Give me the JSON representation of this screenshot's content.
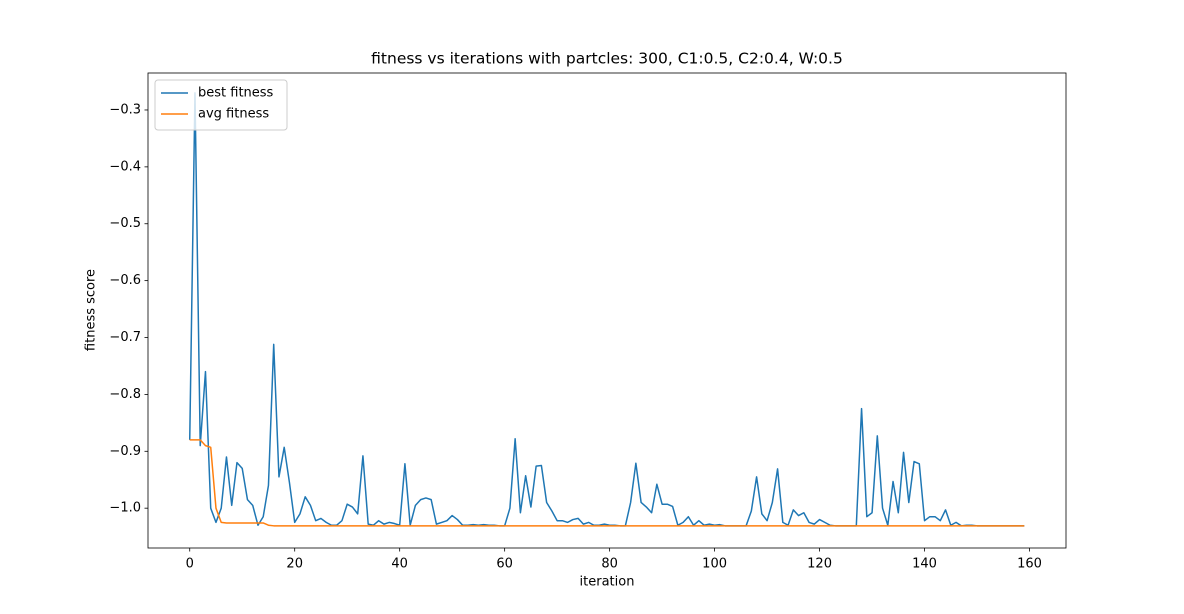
{
  "chart_data": {
    "type": "line",
    "title": "fitness vs iterations with partcles: 300, C1:0.5, C2:0.4, W:0.5",
    "xlabel": "iteration",
    "ylabel": "fitness score",
    "x": [
      0,
      1,
      2,
      3,
      4,
      5,
      6,
      7,
      8,
      9,
      10,
      11,
      12,
      13,
      14,
      15,
      16,
      17,
      18,
      19,
      20,
      21,
      22,
      23,
      24,
      25,
      26,
      27,
      28,
      29,
      30,
      31,
      32,
      33,
      34,
      35,
      36,
      37,
      38,
      39,
      40,
      41,
      42,
      43,
      44,
      45,
      46,
      47,
      48,
      49,
      50,
      51,
      52,
      53,
      54,
      55,
      56,
      57,
      58,
      59,
      60,
      61,
      62,
      63,
      64,
      65,
      66,
      67,
      68,
      69,
      70,
      71,
      72,
      73,
      74,
      75,
      76,
      77,
      78,
      79,
      80,
      81,
      82,
      83,
      84,
      85,
      86,
      87,
      88,
      89,
      90,
      91,
      92,
      93,
      94,
      95,
      96,
      97,
      98,
      99,
      100,
      101,
      102,
      103,
      104,
      105,
      106,
      107,
      108,
      109,
      110,
      111,
      112,
      113,
      114,
      115,
      116,
      117,
      118,
      119,
      120,
      121,
      122,
      123,
      124,
      125,
      126,
      127,
      128,
      129,
      130,
      131,
      132,
      133,
      134,
      135,
      136,
      137,
      138,
      139,
      140,
      141,
      142,
      143,
      144,
      145,
      146,
      147,
      148,
      149,
      150,
      151,
      152,
      153,
      154,
      155,
      156,
      157,
      158,
      159
    ],
    "series": [
      {
        "name": "best fitness",
        "color": "#1f77b4",
        "values": [
          -0.88,
          -0.27,
          -0.89,
          -0.76,
          -1.0,
          -1.025,
          -1.0,
          -0.91,
          -0.995,
          -0.92,
          -0.93,
          -0.985,
          -0.995,
          -1.03,
          -1.015,
          -0.96,
          -0.712,
          -0.945,
          -0.893,
          -0.955,
          -1.025,
          -1.01,
          -0.98,
          -0.995,
          -1.022,
          -1.018,
          -1.025,
          -1.03,
          -1.03,
          -1.022,
          -0.993,
          -0.998,
          -1.01,
          -0.908,
          -1.028,
          -1.03,
          -1.022,
          -1.028,
          -1.025,
          -1.027,
          -1.03,
          -0.922,
          -1.03,
          -0.995,
          -0.985,
          -0.982,
          -0.985,
          -1.028,
          -1.025,
          -1.022,
          -1.013,
          -1.02,
          -1.03,
          -1.03,
          -1.029,
          -1.03,
          -1.029,
          -1.03,
          -1.03,
          -1.031,
          -1.031,
          -1.0,
          -0.878,
          -1.008,
          -0.943,
          -0.998,
          -0.926,
          -0.925,
          -0.99,
          -1.005,
          -1.022,
          -1.022,
          -1.025,
          -1.02,
          -1.018,
          -1.028,
          -1.025,
          -1.03,
          -1.03,
          -1.028,
          -1.03,
          -1.03,
          -1.031,
          -1.031,
          -0.99,
          -0.921,
          -0.99,
          -0.998,
          -1.008,
          -0.958,
          -0.993,
          -0.993,
          -0.997,
          -1.03,
          -1.025,
          -1.015,
          -1.03,
          -1.022,
          -1.03,
          -1.028,
          -1.03,
          -1.029,
          -1.031,
          -1.031,
          -1.031,
          -1.031,
          -1.031,
          -1.005,
          -0.945,
          -1.01,
          -1.022,
          -0.99,
          -0.931,
          -1.025,
          -1.03,
          -1.003,
          -1.013,
          -1.008,
          -1.025,
          -1.028,
          -1.02,
          -1.025,
          -1.03,
          -1.031,
          -1.031,
          -1.031,
          -1.031,
          -1.031,
          -0.825,
          -1.015,
          -1.008,
          -0.873,
          -1.0,
          -1.03,
          -0.953,
          -1.008,
          -0.902,
          -0.99,
          -0.918,
          -0.922,
          -1.022,
          -1.015,
          -1.015,
          -1.022,
          -1.003,
          -1.03,
          -1.025,
          -1.031,
          -1.03,
          -1.03,
          -1.031,
          -1.031,
          -1.031,
          -1.031,
          -1.031,
          -1.031,
          -1.031,
          -1.031,
          -1.031,
          -1.031
        ]
      },
      {
        "name": "avg fitness",
        "color": "#ff7f0e",
        "values": [
          -0.88,
          -0.88,
          -0.88,
          -0.89,
          -0.893,
          -1.0,
          -1.025,
          -1.026,
          -1.026,
          -1.026,
          -1.026,
          -1.026,
          -1.026,
          -1.026,
          -1.026,
          -1.03,
          -1.031,
          -1.031,
          -1.031,
          -1.031,
          -1.031,
          -1.031,
          -1.031,
          -1.031,
          -1.031,
          -1.031,
          -1.031,
          -1.031,
          -1.031,
          -1.031,
          -1.031,
          -1.031,
          -1.031,
          -1.031,
          -1.031,
          -1.031,
          -1.031,
          -1.031,
          -1.031,
          -1.031,
          -1.031,
          -1.031,
          -1.031,
          -1.031,
          -1.031,
          -1.031,
          -1.031,
          -1.031,
          -1.031,
          -1.031,
          -1.031,
          -1.031,
          -1.031,
          -1.031,
          -1.031,
          -1.031,
          -1.031,
          -1.031,
          -1.031,
          -1.031,
          -1.031,
          -1.031,
          -1.031,
          -1.031,
          -1.031,
          -1.031,
          -1.031,
          -1.031,
          -1.031,
          -1.031,
          -1.031,
          -1.031,
          -1.031,
          -1.031,
          -1.031,
          -1.031,
          -1.031,
          -1.031,
          -1.031,
          -1.031,
          -1.031,
          -1.031,
          -1.031,
          -1.031,
          -1.031,
          -1.031,
          -1.031,
          -1.031,
          -1.031,
          -1.031,
          -1.031,
          -1.031,
          -1.031,
          -1.031,
          -1.031,
          -1.031,
          -1.031,
          -1.031,
          -1.031,
          -1.031,
          -1.031,
          -1.031,
          -1.031,
          -1.031,
          -1.031,
          -1.031,
          -1.031,
          -1.031,
          -1.031,
          -1.031,
          -1.031,
          -1.031,
          -1.031,
          -1.031,
          -1.031,
          -1.031,
          -1.031,
          -1.031,
          -1.031,
          -1.031,
          -1.031,
          -1.031,
          -1.031,
          -1.031,
          -1.031,
          -1.031,
          -1.031,
          -1.031,
          -1.031,
          -1.031,
          -1.031,
          -1.031,
          -1.031,
          -1.031,
          -1.031,
          -1.031,
          -1.031,
          -1.031,
          -1.031,
          -1.031,
          -1.031,
          -1.031,
          -1.031,
          -1.031,
          -1.031,
          -1.031,
          -1.031,
          -1.031,
          -1.031,
          -1.031,
          -1.031,
          -1.031,
          -1.031,
          -1.031,
          -1.031,
          -1.031,
          -1.031,
          -1.031,
          -1.031,
          -1.031
        ]
      }
    ],
    "xlim": [
      -7.95,
      166.95
    ],
    "xticks": [
      0,
      20,
      40,
      60,
      80,
      100,
      120,
      140,
      160
    ],
    "ylim": [
      -1.07,
      -0.235
    ],
    "yticks": [
      {
        "value": -1.0,
        "label": "−1.0"
      },
      {
        "value": -0.9,
        "label": "−0.9"
      },
      {
        "value": -0.8,
        "label": "−0.8"
      },
      {
        "value": -0.7,
        "label": "−0.7"
      },
      {
        "value": -0.6,
        "label": "−0.6"
      },
      {
        "value": -0.5,
        "label": "−0.5"
      },
      {
        "value": -0.4,
        "label": "−0.4"
      },
      {
        "value": -0.3,
        "label": "−0.3"
      }
    ],
    "legend": "upper left"
  }
}
